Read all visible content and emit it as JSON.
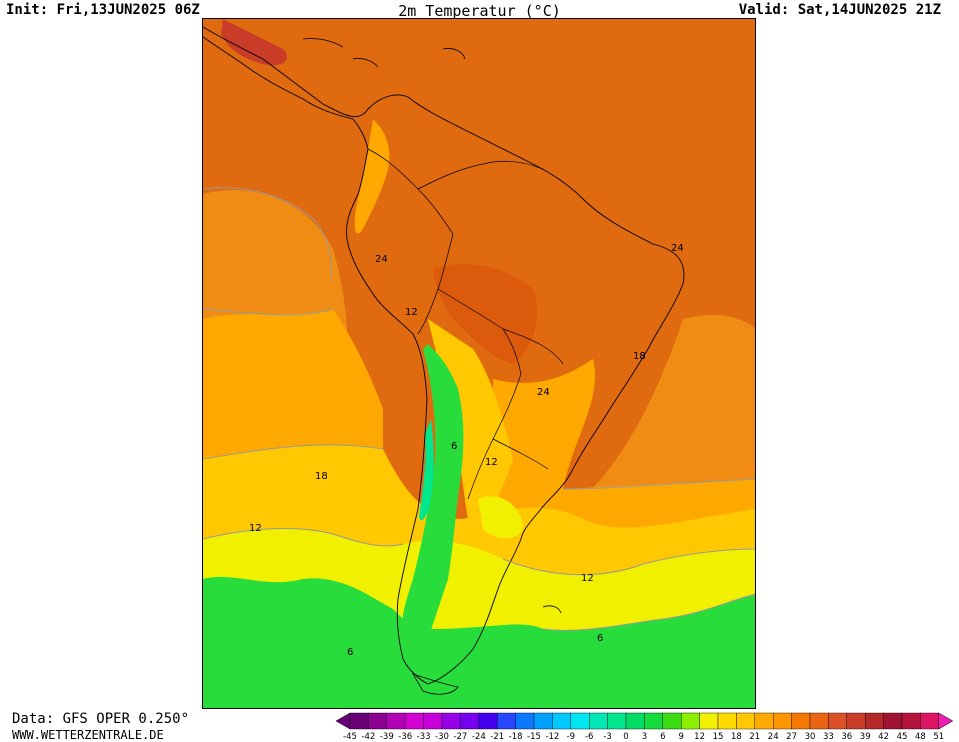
{
  "header": {
    "init": "Init: Fri,13JUN2025 06Z",
    "title": "2m Temperatur (°C)",
    "valid": "Valid: Sat,14JUN2025 21Z"
  },
  "footer": {
    "data_source": "Data: GFS OPER 0.250°",
    "website": "WWW.WETTERZENTRALE.DE"
  },
  "contour_labels": [
    "24",
    "12",
    "24",
    "24",
    "18",
    "6",
    "12",
    "18",
    "12",
    "12",
    "6",
    "6"
  ],
  "legend": {
    "ticks": [
      "-45",
      "-42",
      "-39",
      "-36",
      "-33",
      "-30",
      "-27",
      "-24",
      "-21",
      "-18",
      "-15",
      "-12",
      "-9",
      "-6",
      "-3",
      "0",
      "3",
      "6",
      "9",
      "12",
      "15",
      "18",
      "21",
      "24",
      "27",
      "30",
      "33",
      "36",
      "39",
      "42",
      "45",
      "48",
      "51"
    ],
    "colors": [
      "#6a0078",
      "#8a0090",
      "#b400b4",
      "#d200d2",
      "#c800dc",
      "#9600e6",
      "#7800f0",
      "#4600f0",
      "#2846ff",
      "#0a78ff",
      "#00a0ff",
      "#00c8ff",
      "#00e6f0",
      "#00e6b4",
      "#00e68c",
      "#00dc64",
      "#14dc3c",
      "#3cdc14",
      "#8cf000",
      "#f0f000",
      "#ffdc00",
      "#ffc800",
      "#ffaa00",
      "#ff9600",
      "#f57800",
      "#eb6414",
      "#dc5028",
      "#c83c28",
      "#b42828",
      "#a01432",
      "#b4143c",
      "#dc1464",
      "#f01eb4"
    ]
  },
  "colors": {
    "deep_orange": "#e06a10",
    "orange": "#f08c14",
    "light_orange": "#ffa800",
    "amber": "#ffc800",
    "yellow": "#f0f000",
    "yellow_green": "#a0e614",
    "green": "#28dc3c",
    "red": "#c83c28"
  }
}
